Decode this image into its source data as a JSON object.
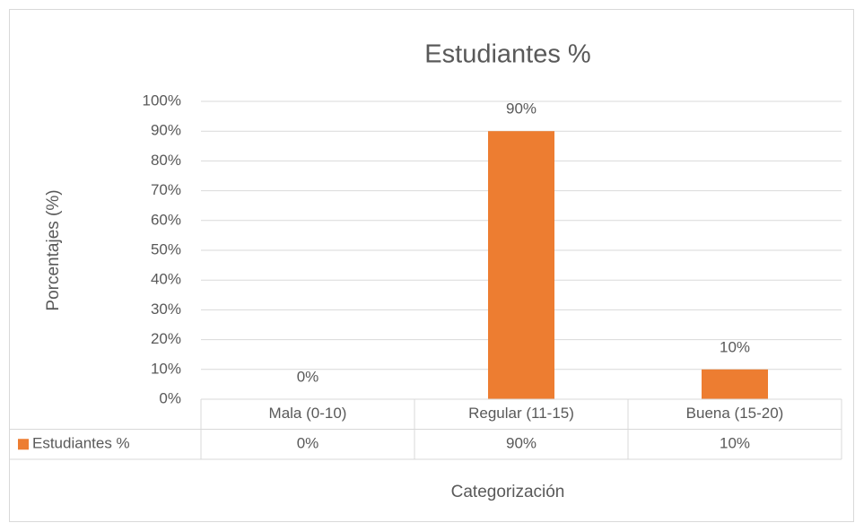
{
  "chart_data": {
    "type": "bar",
    "title": "Estudiantes %",
    "y_label": "Porcentajes (%)",
    "x_label": "Categorización",
    "categories": [
      "Mala (0-10)",
      "Regular (11-15)",
      "Buena (15-20)"
    ],
    "series": [
      {
        "name": "Estudiantes %",
        "color": "#ed7d31",
        "values": [
          0,
          90,
          10
        ],
        "value_labels": [
          "0%",
          "90%",
          "10%"
        ]
      }
    ],
    "ylim": [
      0,
      100
    ],
    "yticks": [
      {
        "value": 0,
        "label": "0%"
      },
      {
        "value": 10,
        "label": "10%"
      },
      {
        "value": 20,
        "label": "20%"
      },
      {
        "value": 30,
        "label": "30%"
      },
      {
        "value": 40,
        "label": "40%"
      },
      {
        "value": 50,
        "label": "50%"
      },
      {
        "value": 60,
        "label": "60%"
      },
      {
        "value": 70,
        "label": "70%"
      },
      {
        "value": 80,
        "label": "80%"
      },
      {
        "value": 90,
        "label": "90%"
      },
      {
        "value": 100,
        "label": "100%"
      }
    ],
    "grid": true,
    "data_table": true
  }
}
